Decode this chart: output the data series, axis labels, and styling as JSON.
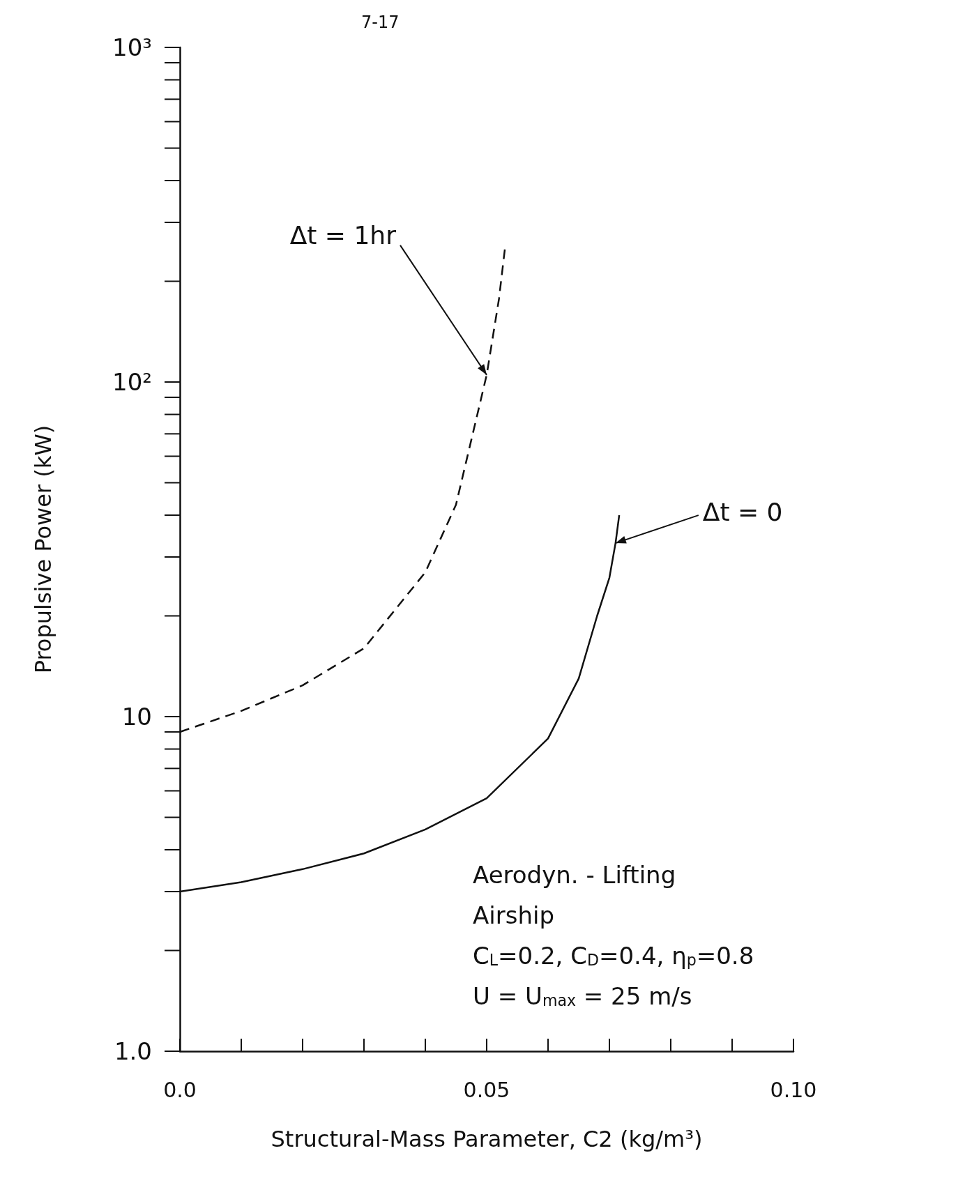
{
  "chart_data": {
    "type": "line",
    "xlabel": "Structural-Mass Parameter, C2 (kg/m³)",
    "ylabel": "Propulsive Power (kW)",
    "log": "y",
    "xlim": [
      0,
      0.1
    ],
    "ylim": [
      1,
      1000
    ],
    "xticks": [
      {
        "value": 0,
        "label": "0.0"
      },
      {
        "value": 0.05,
        "label": "0.05"
      },
      {
        "value": 0.1,
        "label": "0.10"
      }
    ],
    "yticks": [
      {
        "value": 1,
        "label": "1.0"
      },
      10,
      {
        "value": 100,
        "label": "10²"
      },
      {
        "value": 1000,
        "label": "10³"
      }
    ],
    "marker": "none",
    "series": [
      {
        "color": "#111111",
        "line_style": "dashed",
        "x": [
          0,
          0.01,
          0.02,
          0.03,
          0.04,
          0.045,
          0.05,
          0.052,
          0.053
        ],
        "values": [
          9,
          10.4,
          12.4,
          16,
          27,
          43,
          105,
          177,
          253
        ]
      },
      {
        "color": "#111111",
        "line_style": "solid",
        "x": [
          0,
          0.01,
          0.02,
          0.03,
          0.04,
          0.05,
          0.06,
          0.065,
          0.068,
          0.07,
          0.071,
          0.0716
        ],
        "values": [
          3,
          3.2,
          3.5,
          3.9,
          4.6,
          5.7,
          8.6,
          13,
          20,
          26,
          33,
          40
        ]
      }
    ],
    "annotations": [
      "7-17",
      {
        "text": "Δt = 1hr",
        "x": 0.05,
        "y": 105
      },
      {
        "text": "Δt = 0",
        "x": 0.071,
        "y": 33
      },
      "Aerodyn. - Lifting",
      "Airship",
      "C$_{L}$=0.2, C$_{D}$=0.4, η$_{p}$=0.8",
      "U = U$_{max}$ = 25 m/s"
    ]
  }
}
